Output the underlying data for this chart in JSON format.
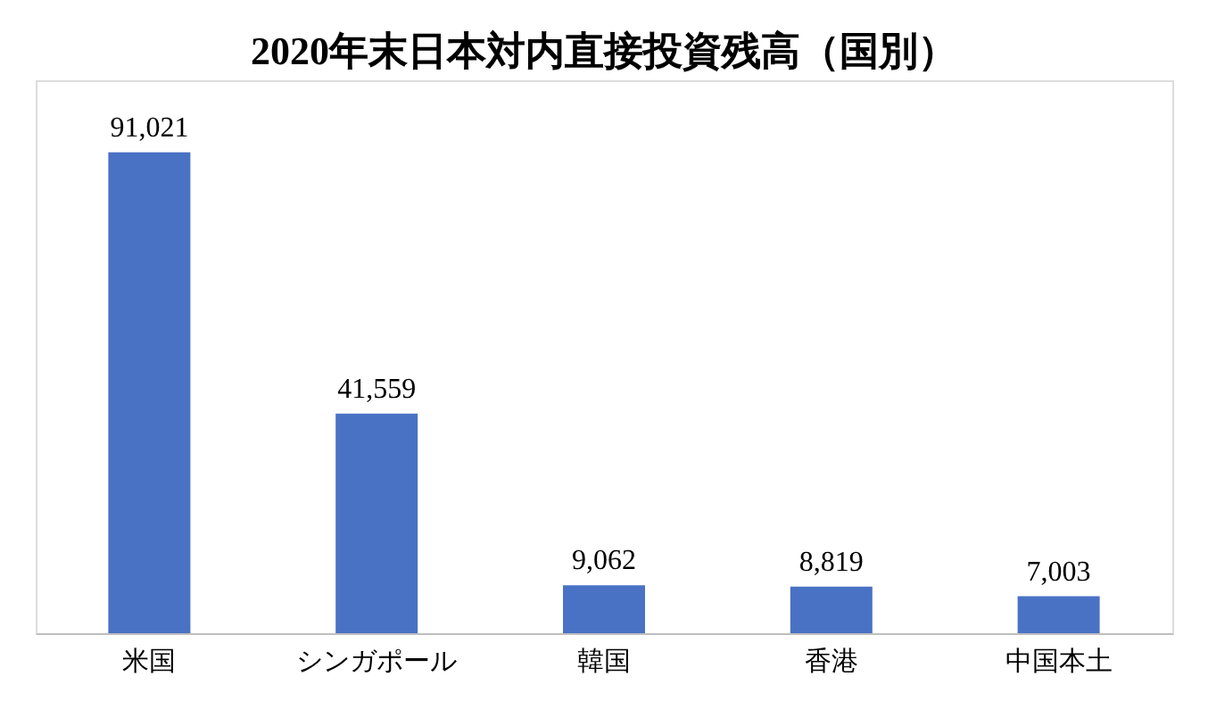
{
  "chart_data": {
    "type": "bar",
    "title": "2020年末日本対内直接投資残高（国別）",
    "categories": [
      "米国",
      "シンガポール",
      "韓国",
      "香港",
      "中国本土"
    ],
    "values": [
      91021,
      41559,
      9062,
      8819,
      7003
    ],
    "value_labels": [
      "91,021",
      "41,559",
      "9,062",
      "8,819",
      "7,003"
    ],
    "color": "#4a72c4",
    "grid": false
  }
}
